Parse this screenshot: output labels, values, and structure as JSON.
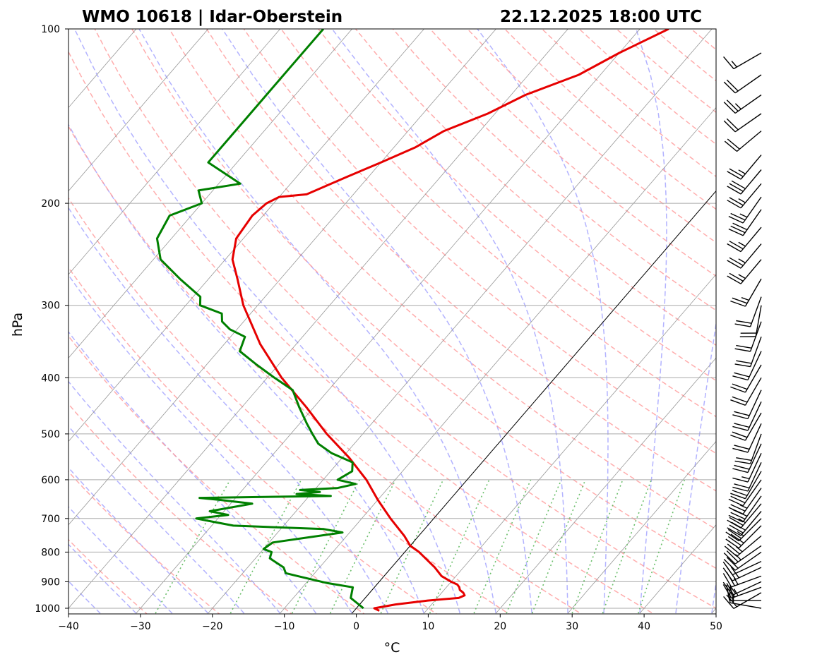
{
  "title_left": "WMO 10618 | Idar-Oberstein",
  "title_right": "22.12.2025 18:00 UTC",
  "colors": {
    "temperature": "#e60000",
    "dewpoint": "#008000",
    "isobar": "#aaaaaa",
    "isotherm": "#8c8c8c",
    "dry_adiabat": "#ff9999",
    "moist_adiabat": "#9999ff",
    "mixing_ratio": "#5cb85c",
    "zero_isotherm": "#000000"
  },
  "chart_data": {
    "type": "line",
    "subtype": "skew-T log-P",
    "xlabel": "°C",
    "ylabel": "hPa",
    "xlim": [
      -40,
      50
    ],
    "ylim": [
      1020,
      100
    ],
    "y_scale": "log",
    "grid": true,
    "x_ticks": [
      "−40",
      "−30",
      "−20",
      "−10",
      "0",
      "10",
      "20",
      "30",
      "40",
      "50"
    ],
    "y_ticks": [
      "100",
      "200",
      "300",
      "400",
      "500",
      "600",
      "700",
      "800",
      "900",
      "1000"
    ],
    "series": [
      {
        "key": "temperature",
        "pressure": [
          1010,
          1000,
          985,
          970,
          960,
          950,
          940,
          930,
          920,
          910,
          900,
          880,
          850,
          800,
          780,
          750,
          700,
          650,
          600,
          550,
          500,
          450,
          400,
          350,
          300,
          270,
          250,
          230,
          210,
          200,
          195,
          193,
          180,
          170,
          160,
          150,
          140,
          130,
          120,
          110,
          100
        ],
        "temp_c": [
          3.5,
          2.5,
          5.0,
          9.0,
          13.0,
          13.5,
          13.0,
          12.2,
          11.8,
          11.2,
          10.0,
          8.0,
          6.0,
          2.0,
          0.0,
          -2.0,
          -6.0,
          -10.0,
          -14.0,
          -19.0,
          -25.0,
          -31.0,
          -38.0,
          -45.0,
          -52.0,
          -56.0,
          -59.0,
          -61.0,
          -61.5,
          -61.0,
          -60.0,
          -56.5,
          -53.0,
          -50.0,
          -47.0,
          -45.0,
          -41.0,
          -38.0,
          -33.0,
          -30.0,
          -26.0
        ]
      },
      {
        "key": "dewpoint",
        "pressure": [
          1000,
          960,
          920,
          905,
          900,
          880,
          870,
          850,
          820,
          800,
          790,
          770,
          740,
          730,
          720,
          710,
          700,
          690,
          680,
          660,
          650,
          645,
          640,
          635,
          630,
          625,
          620,
          610,
          600,
          580,
          560,
          540,
          520,
          500,
          480,
          450,
          420,
          400,
          380,
          360,
          340,
          330,
          320,
          310,
          300,
          290,
          270,
          250,
          230,
          210,
          200,
          190,
          185,
          170,
          150,
          130,
          115,
          100
        ],
        "dewpoint_c": [
          1.0,
          -2.0,
          -3.0,
          -7.0,
          -8.0,
          -12.0,
          -14.0,
          -15.0,
          -18.0,
          -18.5,
          -20.0,
          -19.5,
          -11.0,
          -14.0,
          -27.0,
          -30.0,
          -33.0,
          -29.0,
          -32.0,
          -27.0,
          -32.0,
          -35.0,
          -17.0,
          -22.0,
          -19.0,
          -22.0,
          -17.0,
          -15.0,
          -18.0,
          -17.0,
          -18.0,
          -22.0,
          -25.0,
          -27.0,
          -29.0,
          -32.0,
          -35.0,
          -39.0,
          -43.0,
          -47.0,
          -48.0,
          -51.0,
          -53.0,
          -54.0,
          -58.0,
          -59.0,
          -64.0,
          -69.0,
          -72.0,
          -73.0,
          -70.0,
          -72.0,
          -67.0,
          -74.0,
          -74.0,
          -74.0,
          -74.0,
          -74.0
        ]
      }
    ],
    "wind_barbs": {
      "pressure": [
        1000,
        970,
        940,
        920,
        900,
        880,
        850,
        830,
        800,
        780,
        750,
        720,
        700,
        680,
        660,
        640,
        620,
        600,
        580,
        560,
        540,
        520,
        500,
        480,
        460,
        440,
        420,
        400,
        380,
        360,
        340,
        320,
        300,
        290,
        270,
        250,
        235,
        220,
        205,
        195,
        185,
        175,
        165,
        150,
        140,
        130,
        120,
        110
      ],
      "speed_kt": [
        15,
        20,
        20,
        25,
        15,
        25,
        25,
        15,
        20,
        25,
        25,
        30,
        25,
        30,
        25,
        30,
        25,
        20,
        20,
        20,
        15,
        20,
        20,
        20,
        20,
        20,
        20,
        20,
        20,
        20,
        20,
        20,
        20,
        20,
        25,
        25,
        25,
        25,
        30,
        25,
        25,
        30,
        25,
        20,
        20,
        25,
        20,
        15
      ],
      "direction_deg": [
        280,
        270,
        240,
        250,
        245,
        250,
        245,
        245,
        235,
        235,
        230,
        225,
        225,
        220,
        220,
        215,
        215,
        215,
        210,
        205,
        205,
        205,
        200,
        205,
        210,
        205,
        205,
        210,
        210,
        205,
        200,
        200,
        190,
        200,
        210,
        220,
        220,
        220,
        215,
        215,
        220,
        220,
        220,
        230,
        235,
        235,
        235,
        240
      ]
    }
  }
}
